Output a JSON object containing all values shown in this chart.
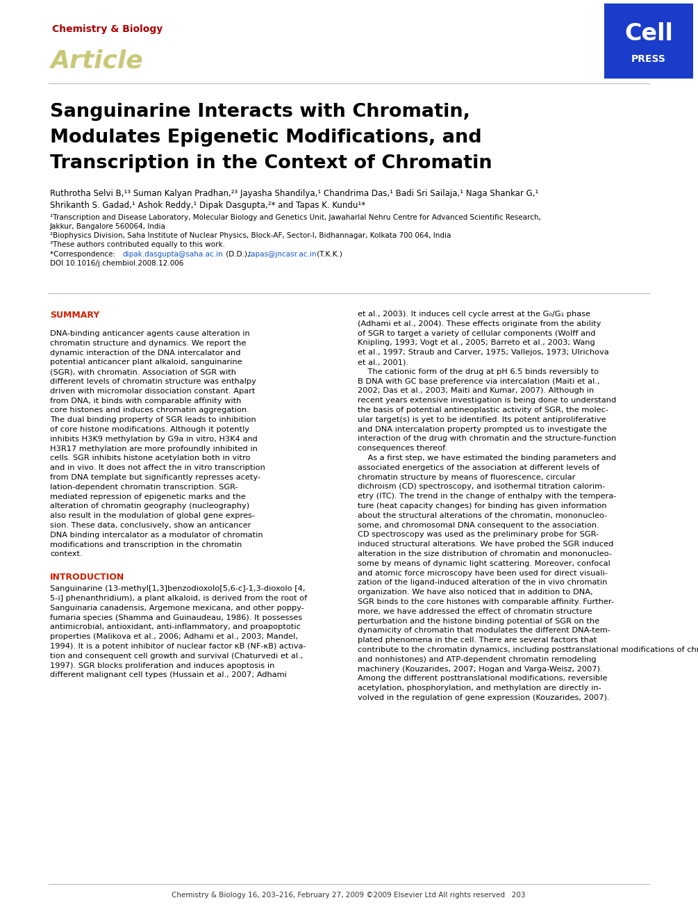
{
  "bg_color": "#ffffff",
  "journal_name": "Chemistry & Biology",
  "journal_name_color": "#aa0000",
  "article_label": "Article",
  "article_label_color": "#c8c878",
  "cell_press_bg": "#1a3cc8",
  "title_line1": "Sanguinarine Interacts with Chromatin,",
  "title_line2": "Modulates Epigenetic Modifications, and",
  "title_line3": "Transcription in the Context of Chromatin",
  "title_color": "#000000",
  "authors_line1": "Ruthrotha Selvi B,¹³ Suman Kalyan Pradhan,²³ Jayasha Shandilya,¹ Chandrima Das,¹ Badi Sri Sailaja,¹ Naga Shankar G,¹",
  "authors_line2": "Shrikanth S. Gadad,¹ Ashok Reddy,¹ Dipak Dasgupta,²* and Tapas K. Kundu¹*",
  "affil1": "¹Transcription and Disease Laboratory, Molecular Biology and Genetics Unit, Jawaharlal Nehru Centre for Advanced Scientific Research,",
  "affil1b": "Jakkur, Bangalore 560064, India",
  "affil2": "²Biophysics Division, Saha Institute of Nuclear Physics, Block-AF, Sector-I, Bidhannagar, Kolkata 700 064, India",
  "affil3": "³These authors contributed equally to this work.",
  "corr_prefix": "*Correspondence: ",
  "corr_email1": "dipak.dasgupta@saha.ac.in",
  "corr_mid": " (D.D.), ",
  "corr_email2": "tapas@jncasr.ac.in",
  "corr_suffix": " (T.K.K.)",
  "doi": "DOI 10.1016/j.chembiol.2008.12.006",
  "summary_header": "SUMMARY",
  "summary_header_color": "#cc2200",
  "summary_lines": [
    "DNA-binding anticancer agents cause alteration in",
    "chromatin structure and dynamics. We report the",
    "dynamic interaction of the DNA intercalator and",
    "potential anticancer plant alkaloid, sanguinarine",
    "(SGR), with chromatin. Association of SGR with",
    "different levels of chromatin structure was enthalpy",
    "driven with micromolar dissociation constant. Apart",
    "from DNA, it binds with comparable affinity with",
    "core histones and induces chromatin aggregation.",
    "The dual binding property of SGR leads to inhibition",
    "of core histone modifications. Although it potently",
    "inhibits H3K9 methylation by G9a in vitro, H3K4 and",
    "H3R17 methylation are more profoundly inhibited in",
    "cells. SGR inhibits histone acetylation both in vitro",
    "and in vivo. It does not affect the in vitro transcription",
    "from DNA template but significantly represses acety-",
    "lation-dependent chromatin transcription. SGR-",
    "mediated repression of epigenetic marks and the",
    "alteration of chromatin geography (nucleography)",
    "also result in the modulation of global gene expres-",
    "sion. These data, conclusively, show an anticancer",
    "DNA binding intercalator as a modulator of chromatin",
    "modifications and transcription in the chromatin",
    "context."
  ],
  "intro_header": "INTRODUCTION",
  "intro_header_color": "#cc2200",
  "intro_lines": [
    "Sanguinarine (13-methyl[1,3]benzodioxolo[5,6-c]-1,3-dioxolo [4,",
    "5-i] phenanthridium), a plant alkaloid, is derived from the root of",
    "Sanguinaria canadensis, Argemone mexicana, and other poppy-",
    "fumaria species (Shamma and Guinaudeau, 1986). It possesses",
    "antimicrobial, antioxidant, anti-inflammatory, and proapoptotic",
    "properties (Malikova et al., 2006; Adhami et al., 2003; Mandel,",
    "1994). It is a potent inhibitor of nuclear factor κB (NF-κB) activa-",
    "tion and consequent cell growth and survival (Chaturvedi et al.,",
    "1997). SGR blocks proliferation and induces apoptosis in",
    "different malignant cell types (Hussain et al., 2007; Adhami"
  ],
  "right_lines": [
    "et al., 2003). It induces cell cycle arrest at the G₀/G₁ phase",
    "(Adhami et al., 2004). These effects originate from the ability",
    "of SGR to target a variety of cellular components (Wolff and",
    "Knipling, 1993; Vogt et al., 2005; Barreto et al., 2003; Wang",
    "et al., 1997; Straub and Carver, 1975; Vallejos, 1973; Ulrichova",
    "et al., 2001).",
    "    The cationic form of the drug at pH 6.5 binds reversibly to",
    "B DNA with GC base preference via intercalation (Maiti et al.,",
    "2002; Das et al., 2003; Maiti and Kumar, 2007). Although in",
    "recent years extensive investigation is being done to understand",
    "the basis of potential antineoplastic activity of SGR, the molec-",
    "ular target(s) is yet to be identified. Its potent antiproliferative",
    "and DNA intercalation property prompted us to investigate the",
    "interaction of the drug with chromatin and the structure-function",
    "consequences thereof.",
    "    As a first step, we have estimated the binding parameters and",
    "associated energetics of the association at different levels of",
    "chromatin structure by means of fluorescence, circular",
    "dichroism (CD) spectroscopy, and isothermal titration calorim-",
    "etry (ITC). The trend in the change of enthalpy with the tempera-",
    "ture (heat capacity changes) for binding has given information",
    "about the structural alterations of the chromatin, mononucleo-",
    "some, and chromosomal DNA consequent to the association.",
    "CD spectroscopy was used as the preliminary probe for SGR-",
    "induced structural alterations. We have probed the SGR induced",
    "alteration in the size distribution of chromatin and mononucleo-",
    "some by means of dynamic light scattering. Moreover, confocal",
    "and atomic force microscopy have been used for direct visuali-",
    "zation of the ligand-induced alteration of the in vivo chromatin",
    "organization. We have also noticed that in addition to DNA,",
    "SGR binds to the core histones with comparable affinity. Further-",
    "more, we have addressed the effect of chromatin structure",
    "perturbation and the histone binding potential of SGR on the",
    "dynamicity of chromatin that modulates the different DNA-tem-",
    "plated phenomena in the cell. There are several factors that",
    "contribute to the chromatin dynamics, including posttranslational modifications of chromatin associated proteins (histones",
    "and nonhistones) and ATP-dependent chromatin remodeling",
    "machinery (Kouzarides, 2007; Hogan and Varga-Weisz, 2007).",
    "Among the different posttranslational modifications, reversible",
    "acetylation, phosphorylation, and methylation are directly in-",
    "volved in the regulation of gene expression (Kouzarides, 2007)."
  ],
  "footer_text": "Chemistry & Biology 16, 203–216, February 27, 2009 ©2009 Elsevier Ltd All rights reserved   203",
  "link_color": "#1155cc",
  "text_color": "#000000"
}
